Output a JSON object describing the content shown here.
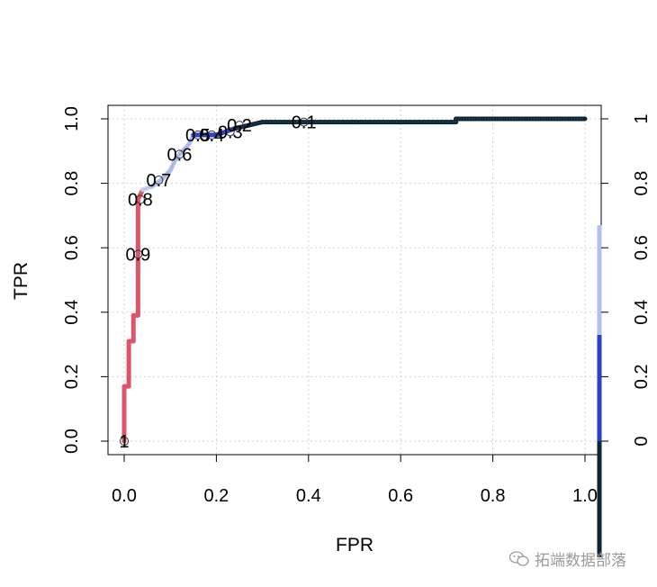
{
  "chart_data": {
    "type": "line",
    "title": "",
    "xlabel": "FPR",
    "ylabel": "TPR",
    "xlim": [
      0,
      1
    ],
    "ylim": [
      0,
      1
    ],
    "x_ticks": [
      "0.0",
      "0.2",
      "0.4",
      "0.6",
      "0.8",
      "1.0"
    ],
    "y_ticks": [
      "0.0",
      "0.2",
      "0.4",
      "0.6",
      "0.8",
      "1.0"
    ],
    "grid": true,
    "colorized": true,
    "roc_curve": [
      [
        0.0,
        0.0
      ],
      [
        0.0,
        0.17
      ],
      [
        0.01,
        0.17
      ],
      [
        0.01,
        0.31
      ],
      [
        0.02,
        0.31
      ],
      [
        0.02,
        0.39
      ],
      [
        0.03,
        0.39
      ],
      [
        0.03,
        0.58
      ],
      [
        0.03,
        0.75
      ],
      [
        0.04,
        0.78
      ],
      [
        0.06,
        0.79
      ],
      [
        0.08,
        0.81
      ],
      [
        0.1,
        0.84
      ],
      [
        0.11,
        0.87
      ],
      [
        0.12,
        0.89
      ],
      [
        0.14,
        0.92
      ],
      [
        0.15,
        0.95
      ],
      [
        0.18,
        0.95
      ],
      [
        0.2,
        0.95
      ],
      [
        0.22,
        0.96
      ],
      [
        0.24,
        0.97
      ],
      [
        0.27,
        0.98
      ],
      [
        0.3,
        0.99
      ],
      [
        0.38,
        0.99
      ],
      [
        0.5,
        0.99
      ],
      [
        0.72,
        0.99
      ],
      [
        0.72,
        1.0
      ],
      [
        1.0,
        1.0
      ]
    ],
    "cutoff_labels": [
      {
        "text": "1",
        "x": 0.0,
        "y": 0.0
      },
      {
        "text": "0.9",
        "x": 0.03,
        "y": 0.58
      },
      {
        "text": "0.8",
        "x": 0.035,
        "y": 0.75
      },
      {
        "text": "0.7",
        "x": 0.075,
        "y": 0.81
      },
      {
        "text": "0.6",
        "x": 0.12,
        "y": 0.89
      },
      {
        "text": "0.5",
        "x": 0.16,
        "y": 0.95
      },
      {
        "text": "0.4",
        "x": 0.19,
        "y": 0.95
      },
      {
        "text": "0.3",
        "x": 0.23,
        "y": 0.96
      },
      {
        "text": "0.2",
        "x": 0.25,
        "y": 0.98
      },
      {
        "text": "0.1",
        "x": 0.39,
        "y": 0.99
      }
    ],
    "colorbar": {
      "ticks": [
        "0",
        "0.2",
        "0.4",
        "0.6",
        "0.8",
        "1"
      ],
      "segments": [
        {
          "from": -0.36,
          "to": 0.0,
          "color": "#0b2436"
        },
        {
          "from": 0.0,
          "to": 0.33,
          "color": "#2a40c8"
        },
        {
          "from": 0.33,
          "to": 0.67,
          "color": "#b3c0ee"
        }
      ]
    },
    "cutoff_color_stops": [
      {
        "threshold": 1.0,
        "color": "#e0546a"
      },
      {
        "threshold": 0.75,
        "color": "#e0546a"
      },
      {
        "threshold": 0.7,
        "color": "#c9d2f2"
      },
      {
        "threshold": 0.5,
        "color": "#b3c0ee"
      },
      {
        "threshold": 0.3,
        "color": "#2a40c8"
      },
      {
        "threshold": 0.15,
        "color": "#0b2436"
      },
      {
        "threshold": 0.0,
        "color": "#0b2436"
      }
    ]
  },
  "watermark": {
    "text": "拓端数据部落",
    "icon": "wechat-icon"
  }
}
